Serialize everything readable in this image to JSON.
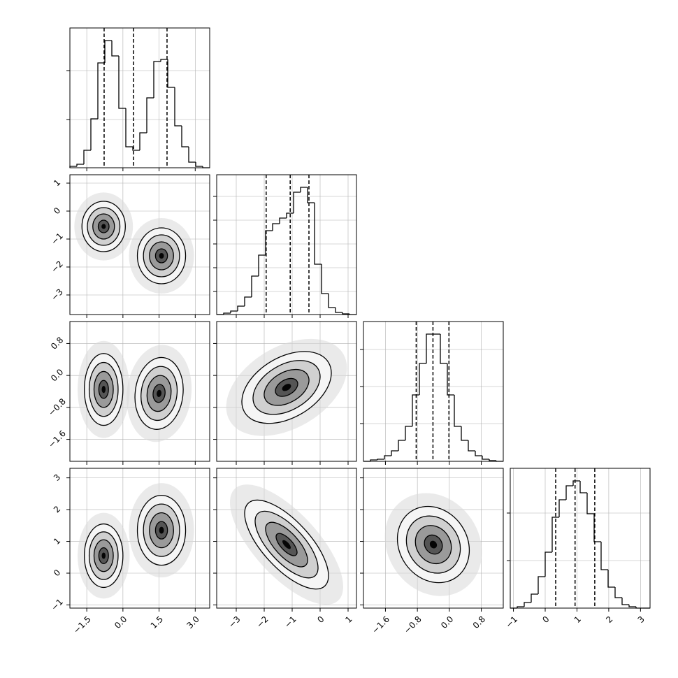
{
  "chart_data": {
    "type": "corner",
    "grid": true,
    "params": [
      {
        "lim": [
          -2.2,
          3.6
        ],
        "ticks": [
          {
            "value": -1.5,
            "label": "−1.5"
          },
          {
            "value": 0,
            "label": "0.0"
          },
          {
            "value": 1.5,
            "label": "1.5"
          },
          {
            "value": 3,
            "label": "3.0"
          }
        ],
        "bins": [
          -2.2,
          -1.91,
          -1.62,
          -1.33,
          -1.04,
          -0.75,
          -0.46,
          -0.17,
          0.12,
          0.41,
          0.7,
          0.99,
          1.28,
          1.57,
          1.86,
          2.15,
          2.44,
          2.73,
          3.02,
          3.31,
          3.6
        ],
        "counts": [
          10,
          25,
          125,
          350,
          750,
          910,
          800,
          425,
          150,
          125,
          250,
          500,
          760,
          775,
          575,
          300,
          150,
          40,
          10,
          0
        ],
        "hist_ylim": [
          0,
          1000
        ],
        "hist_yticks": [
          345,
          695
        ],
        "quantiles": [
          -0.78,
          0.44,
          1.83
        ]
      },
      {
        "lim": [
          -3.7,
          1.3
        ],
        "ticks": [
          {
            "value": -3,
            "label": "−3"
          },
          {
            "value": -2,
            "label": "−2"
          },
          {
            "value": -1,
            "label": "−1"
          },
          0,
          1
        ],
        "bins": [
          -3.7,
          -3.45,
          -3.2,
          -2.95,
          -2.7,
          -2.45,
          -2.2,
          -1.95,
          -1.7,
          -1.45,
          -1.2,
          -0.95,
          -0.7,
          -0.45,
          -0.2,
          0.05,
          0.3,
          0.55,
          0.8,
          1.05,
          1.3
        ],
        "counts": [
          0,
          10,
          25,
          60,
          125,
          275,
          425,
          600,
          650,
          690,
          725,
          875,
          910,
          800,
          360,
          150,
          50,
          15,
          5,
          0
        ],
        "hist_ylim": [
          0,
          1000
        ],
        "hist_yticks": [
          165,
          335,
          505,
          675,
          845
        ],
        "quantiles": [
          -1.93,
          -1.07,
          -0.4
        ]
      },
      {
        "lim": [
          -2.15,
          1.35
        ],
        "ticks": [
          {
            "value": -1.6,
            "label": "−1.6"
          },
          {
            "value": -0.8,
            "label": "−0.8"
          },
          {
            "value": 0,
            "label": "0.0"
          },
          0.8
        ],
        "bins": [
          -2.15,
          -1.975,
          -1.8,
          -1.625,
          -1.45,
          -1.275,
          -1.1,
          -0.925,
          -0.75,
          -0.575,
          -0.4,
          -0.225,
          -0.05,
          0.125,
          0.3,
          0.475,
          0.65,
          0.825,
          1.0,
          1.175,
          1.35
        ],
        "counts": [
          0,
          10,
          15,
          40,
          75,
          150,
          250,
          475,
          700,
          910,
          910,
          700,
          475,
          250,
          150,
          75,
          40,
          15,
          5,
          0
        ],
        "hist_ylim": [
          0,
          1000
        ],
        "hist_yticks": [
          270,
          535,
          800
        ],
        "quantiles": [
          -0.83,
          -0.41,
          -0.01
        ]
      },
      {
        "lim": [
          -1.1,
          3.3
        ],
        "ticks": [
          {
            "value": -1,
            "label": "−1"
          },
          0,
          1,
          2,
          3
        ],
        "bins": [
          -1.1,
          -0.88,
          -0.66,
          -0.44,
          -0.22,
          0,
          0.22,
          0.44,
          0.66,
          0.88,
          1.1,
          1.32,
          1.54,
          1.76,
          1.98,
          2.2,
          2.42,
          2.64,
          2.86,
          3.08,
          3.3
        ],
        "counts": [
          0,
          10,
          40,
          100,
          225,
          400,
          650,
          775,
          875,
          910,
          825,
          675,
          475,
          275,
          150,
          75,
          25,
          10,
          0,
          0
        ],
        "hist_ylim": [
          0,
          1000
        ],
        "hist_yticks": [
          340,
          680
        ],
        "quantiles": [
          0.33,
          0.94,
          1.56
        ]
      }
    ],
    "pairs": [
      {
        "x": 0,
        "y": 1,
        "components": [
          {
            "cx": -0.8,
            "cy": -0.55,
            "sx": 0.45,
            "sy": 0.45,
            "rho": 0.0
          },
          {
            "cx": 1.6,
            "cy": -1.6,
            "sx": 0.5,
            "sy": 0.5,
            "rho": 0.0
          }
        ]
      },
      {
        "x": 0,
        "y": 2,
        "components": [
          {
            "cx": -0.8,
            "cy": -0.35,
            "sx": 0.4,
            "sy": 0.45,
            "rho": 0.0
          },
          {
            "cx": 1.5,
            "cy": -0.45,
            "sx": 0.5,
            "sy": 0.45,
            "rho": 0.1
          }
        ]
      },
      {
        "x": 1,
        "y": 2,
        "components": [
          {
            "cx": -1.2,
            "cy": -0.3,
            "sx": 0.8,
            "sy": 0.45,
            "rho": 0.4
          }
        ]
      },
      {
        "x": 0,
        "y": 3,
        "components": [
          {
            "cx": -0.8,
            "cy": 0.55,
            "sx": 0.4,
            "sy": 0.5,
            "rho": 0.0
          },
          {
            "cx": 1.6,
            "cy": 1.35,
            "sx": 0.5,
            "sy": 0.55,
            "rho": 0.0
          }
        ]
      },
      {
        "x": 1,
        "y": 3,
        "components": [
          {
            "cx": -1.2,
            "cy": 0.9,
            "sx": 0.75,
            "sy": 0.7,
            "rho": -0.7
          }
        ]
      },
      {
        "x": 2,
        "y": 3,
        "components": [
          {
            "cx": -0.4,
            "cy": 0.9,
            "sx": 0.45,
            "sy": 0.6,
            "rho": -0.15
          }
        ]
      }
    ]
  }
}
